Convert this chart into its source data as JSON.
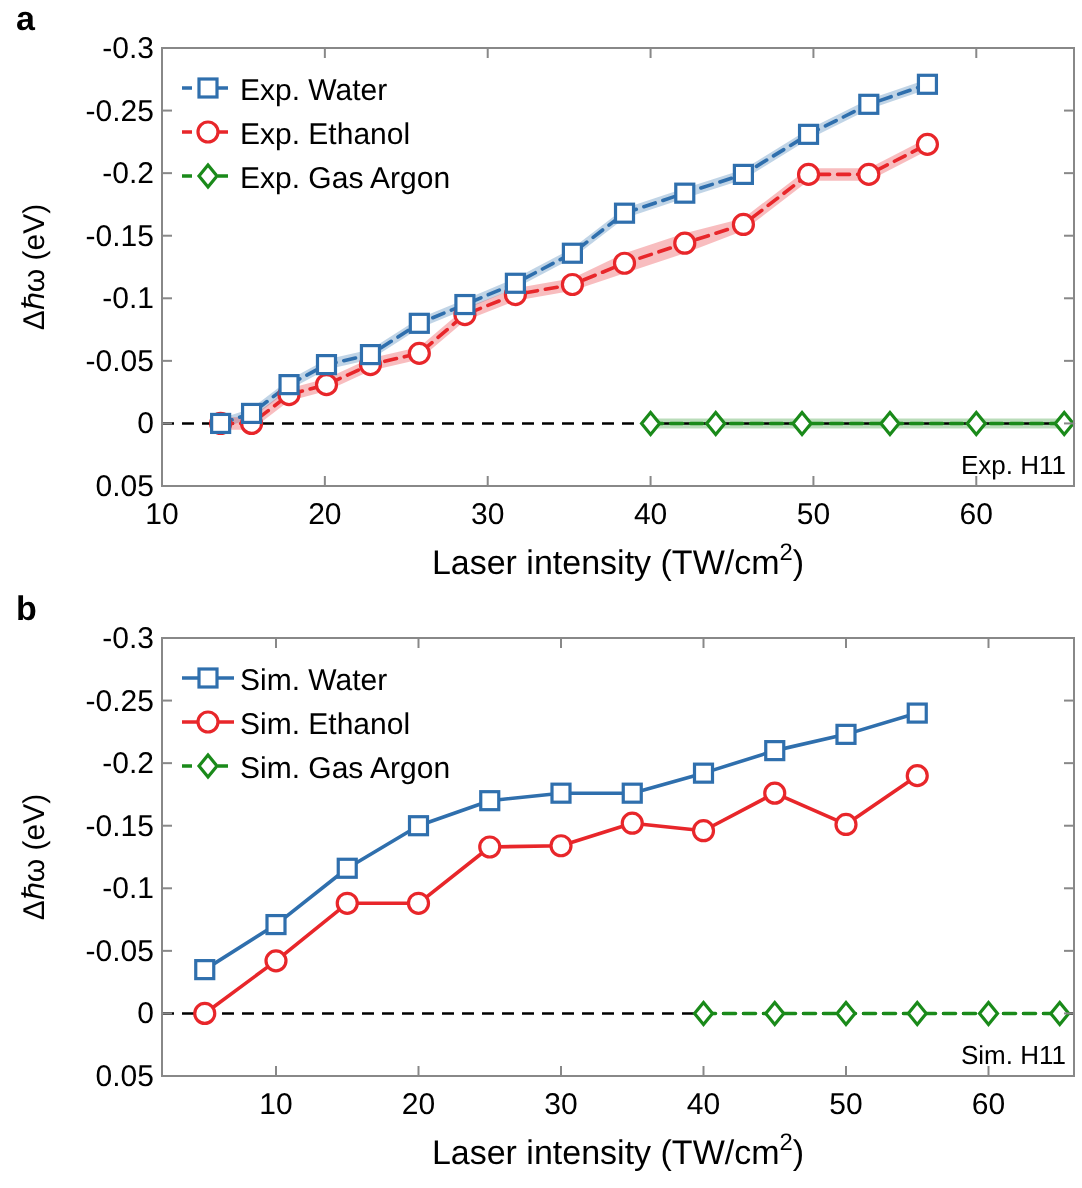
{
  "chart_data": [
    {
      "type": "line",
      "title": "a",
      "xlabel": "Laser intensity (TW/cm$^{2}$)",
      "ylabel": "Δℏω (eV)",
      "xlim": [
        10,
        66
      ],
      "xticks": [
        10,
        20,
        30,
        40,
        50,
        60
      ],
      "ylim": [
        0.05,
        -0.3
      ],
      "yticks": [
        -0.3,
        -0.25,
        -0.2,
        -0.15,
        -0.1,
        -0.05,
        0,
        0.05
      ],
      "legend": "top left",
      "grid": false,
      "ref_lines": [
        {
          "axis": "y",
          "value": 0,
          "color": "#000000",
          "line_style": "dashed"
        }
      ],
      "annotations": [
        "Exp. H11"
      ],
      "series": [
        {
          "name": "Exp. Water",
          "color": "#2f6fad",
          "marker": "square",
          "line_style": "dashed",
          "x": [
            13.6,
            15.5,
            17.8,
            20.1,
            22.8,
            25.8,
            28.6,
            31.7,
            35.2,
            38.4,
            42.1,
            45.7,
            49.7,
            53.4,
            57
          ],
          "values": [
            0,
            -0.008,
            -0.031,
            -0.047,
            -0.055,
            -0.08,
            -0.095,
            -0.112,
            -0.136,
            -0.168,
            -0.184,
            -0.199,
            -0.231,
            -0.255,
            -0.271
          ],
          "lower": [
            -0.004,
            -0.012,
            -0.035,
            -0.051,
            -0.059,
            -0.084,
            -0.099,
            -0.116,
            -0.14,
            -0.172,
            -0.188,
            -0.203,
            -0.235,
            -0.259,
            -0.275
          ],
          "upper": [
            0.004,
            -0.004,
            -0.027,
            -0.043,
            -0.051,
            -0.076,
            -0.091,
            -0.108,
            -0.132,
            -0.164,
            -0.18,
            -0.195,
            -0.227,
            -0.251,
            -0.267
          ]
        },
        {
          "name": "Exp. Ethanol",
          "color": "#e8262a",
          "marker": "circle",
          "line_style": "dashed",
          "x": [
            13.6,
            15.5,
            17.8,
            20.1,
            22.8,
            25.8,
            28.6,
            31.7,
            35.2,
            38.4,
            42.1,
            45.7,
            49.7,
            53.4,
            57
          ],
          "values": [
            0,
            0,
            -0.023,
            -0.031,
            -0.047,
            -0.056,
            -0.087,
            -0.103,
            -0.111,
            -0.128,
            -0.144,
            -0.159,
            -0.199,
            -0.199,
            -0.223
          ],
          "lower": [
            -0.005,
            -0.005,
            -0.028,
            -0.036,
            -0.052,
            -0.061,
            -0.092,
            -0.108,
            -0.116,
            -0.136,
            -0.152,
            -0.164,
            -0.204,
            -0.204,
            -0.228
          ],
          "upper": [
            0.005,
            0.005,
            -0.018,
            -0.026,
            -0.042,
            -0.051,
            -0.082,
            -0.098,
            -0.106,
            -0.12,
            -0.136,
            -0.154,
            -0.194,
            -0.194,
            -0.218
          ]
        },
        {
          "name": "Exp. Gas Argon",
          "color": "#1a8a1a",
          "marker": "diamond",
          "line_style": "dashed",
          "x": [
            40,
            44,
            49.3,
            54.7,
            60,
            65.4
          ],
          "values": [
            0,
            0,
            0,
            0,
            0,
            0
          ],
          "lower": [
            -0.004,
            -0.004,
            -0.004,
            -0.004,
            -0.004,
            -0.004
          ],
          "upper": [
            0.004,
            0.004,
            0.004,
            0.004,
            0.004,
            0.004
          ]
        }
      ]
    },
    {
      "type": "line",
      "title": "b",
      "xlabel": "Laser intensity (TW/cm$^{2}$)",
      "ylabel": "Δℏω (eV)",
      "xlim": [
        2,
        66
      ],
      "xticks": [
        10,
        20,
        30,
        40,
        50,
        60
      ],
      "ylim": [
        0.05,
        -0.3
      ],
      "yticks": [
        -0.3,
        -0.25,
        -0.2,
        -0.15,
        -0.1,
        -0.05,
        0,
        0.05
      ],
      "legend": "top left",
      "grid": false,
      "ref_lines": [
        {
          "axis": "y",
          "value": 0,
          "color": "#000000",
          "line_style": "dashed"
        }
      ],
      "annotations": [
        "Sim. H11"
      ],
      "series": [
        {
          "name": "Sim. Water",
          "color": "#2f6fad",
          "marker": "square",
          "line_style": "solid",
          "x": [
            5,
            10,
            15,
            20,
            25,
            30,
            35,
            40,
            45,
            50,
            55
          ],
          "values": [
            -0.035,
            -0.071,
            -0.116,
            -0.15,
            -0.17,
            -0.176,
            -0.176,
            -0.192,
            -0.21,
            -0.223,
            -0.24
          ]
        },
        {
          "name": "Sim. Ethanol",
          "color": "#e8262a",
          "marker": "circle",
          "line_style": "solid",
          "x": [
            5,
            10,
            15,
            20,
            25,
            30,
            35,
            40,
            45,
            50,
            55
          ],
          "values": [
            0,
            -0.042,
            -0.088,
            -0.088,
            -0.133,
            -0.134,
            -0.152,
            -0.146,
            -0.176,
            -0.151,
            -0.19
          ]
        },
        {
          "name": "Sim. Gas Argon",
          "color": "#1a8a1a",
          "marker": "diamond",
          "line_style": "dashed",
          "x": [
            40,
            45,
            50,
            55,
            60,
            65
          ],
          "values": [
            0,
            0,
            0,
            0,
            0,
            0
          ]
        }
      ]
    }
  ]
}
